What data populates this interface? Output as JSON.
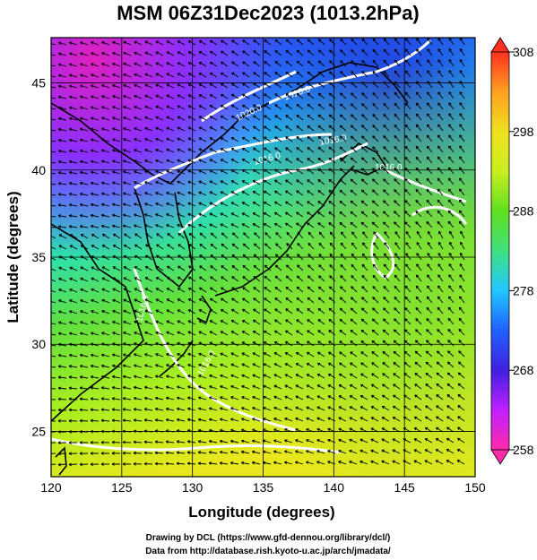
{
  "title": "MSM 06Z31Dec2023 (1013.2hPa)",
  "axes": {
    "xlabel": "Longitude (degrees)",
    "ylabel": "Latitude  (degrees)",
    "xlim": [
      120,
      150
    ],
    "ylim": [
      22.4,
      47.6
    ],
    "xticks": [
      120,
      125,
      130,
      135,
      140,
      145,
      150
    ],
    "yticks": [
      25,
      30,
      35,
      40,
      45
    ],
    "grid": true
  },
  "colorbar": {
    "min": 258,
    "max": 308,
    "ticks": [
      308,
      298,
      288,
      278,
      268,
      258
    ],
    "colors": [
      "#ff2aa8",
      "#c020ff",
      "#4020e0",
      "#2060ff",
      "#20c8ff",
      "#40e080",
      "#60e020",
      "#c8ee20",
      "#f0e020",
      "#ffa020",
      "#ff3020"
    ],
    "extend": "both"
  },
  "isobars": [
    {
      "label": "1020.0"
    },
    {
      "label": "1016.0"
    },
    {
      "label": "1016.0"
    },
    {
      "label": "1016.0"
    },
    {
      "label": "1016.0"
    },
    {
      "label": "1016.0"
    },
    {
      "label": "1016.0"
    }
  ],
  "credits": [
    "Drawing by DCL (https://www.gfd-dennou.org/library/dcl/)",
    "Data from http://database.rish.kyoto-u.ac.jp/arch/jmadata/"
  ],
  "colors": {
    "isobar": "#ffffff",
    "coast": "#000000",
    "vector": "#000000"
  }
}
